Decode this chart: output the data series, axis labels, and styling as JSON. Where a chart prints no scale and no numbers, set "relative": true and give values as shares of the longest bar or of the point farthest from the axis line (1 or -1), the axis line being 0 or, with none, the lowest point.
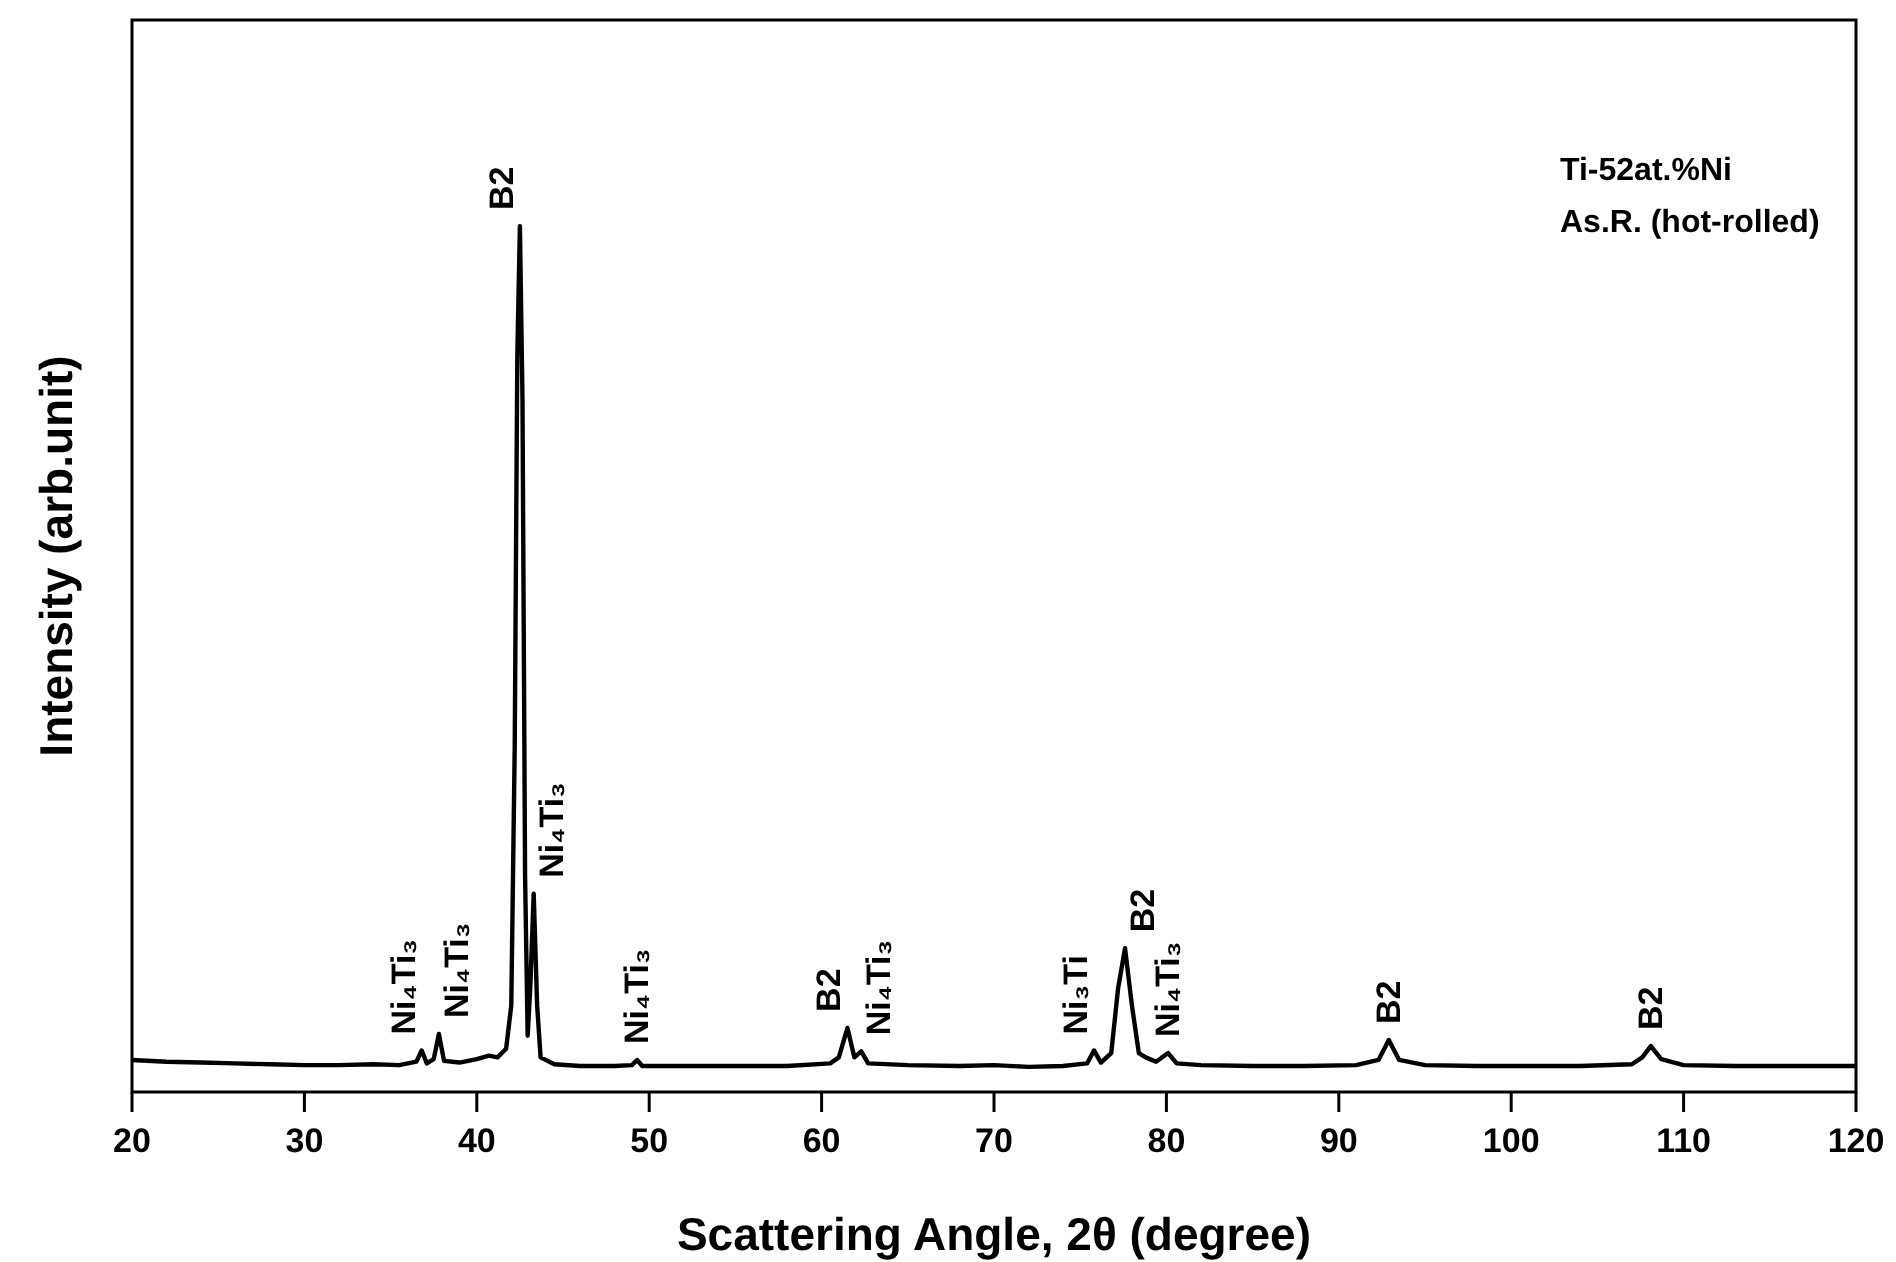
{
  "chart_data": {
    "type": "line",
    "relative": true,
    "xlabel": "Scattering Angle, 2θ (degree)",
    "ylabel": "Intensity (arb.unit)",
    "xlim": [
      20,
      120
    ],
    "xticks": [
      20,
      30,
      40,
      50,
      60,
      70,
      80,
      90,
      100,
      110,
      120
    ],
    "tick_labels": "x",
    "grid": false,
    "marker": "none",
    "line_style": "solid",
    "series": [
      {
        "color": "#000000",
        "x": [
          20,
          22,
          24,
          26,
          28,
          30,
          32,
          34,
          35.5,
          36.5,
          36.8,
          37.1,
          37.5,
          37.8,
          38.1,
          39,
          40,
          40.7,
          41.2,
          41.7,
          42.0,
          42.2,
          42.35,
          42.5,
          42.65,
          42.8,
          42.95,
          43.1,
          43.3,
          43.5,
          43.7,
          44.5,
          46,
          48,
          49.0,
          49.3,
          49.6,
          52,
          55,
          58,
          60.5,
          61.0,
          61.5,
          61.9,
          62.3,
          62.7,
          65,
          68,
          70,
          72,
          74,
          75.4,
          75.8,
          76.2,
          76.8,
          77.2,
          77.6,
          78.0,
          78.4,
          78.8,
          79.4,
          80.1,
          80.6,
          82,
          85,
          88,
          91,
          92.3,
          92.9,
          93.5,
          95,
          98,
          101,
          104,
          107,
          107.6,
          108.1,
          108.7,
          110,
          113,
          116,
          120
        ],
        "values": [
          0.037,
          0.035,
          0.034,
          0.033,
          0.032,
          0.031,
          0.031,
          0.032,
          0.031,
          0.035,
          0.048,
          0.033,
          0.038,
          0.067,
          0.036,
          0.034,
          0.038,
          0.042,
          0.04,
          0.05,
          0.1,
          0.4,
          0.85,
          1.0,
          0.8,
          0.25,
          0.065,
          0.12,
          0.229,
          0.1,
          0.04,
          0.032,
          0.03,
          0.03,
          0.031,
          0.037,
          0.03,
          0.03,
          0.03,
          0.03,
          0.033,
          0.04,
          0.074,
          0.04,
          0.047,
          0.033,
          0.031,
          0.03,
          0.031,
          0.029,
          0.03,
          0.033,
          0.048,
          0.034,
          0.045,
          0.12,
          0.166,
          0.1,
          0.045,
          0.04,
          0.035,
          0.045,
          0.033,
          0.031,
          0.03,
          0.03,
          0.031,
          0.037,
          0.06,
          0.037,
          0.031,
          0.03,
          0.03,
          0.03,
          0.032,
          0.04,
          0.053,
          0.038,
          0.031,
          0.03,
          0.03,
          0.03
        ]
      }
    ],
    "annotations": [
      "Ti-52at.%Ni",
      "As.R. (hot-rolled)",
      {
        "text": "Ni₄Ti₃",
        "x": 36.8,
        "y": 0.048
      },
      {
        "text": "Ni₄Ti₃",
        "x": 37.8,
        "y": 0.067
      },
      {
        "text": "B2",
        "x": 42.5,
        "y": 1.0
      },
      {
        "text": "Ni₄Ti₃",
        "x": 43.3,
        "y": 0.229
      },
      {
        "text": "Ni₄Ti₃",
        "x": 49.3,
        "y": 0.037
      },
      {
        "text": "B2",
        "x": 61.5,
        "y": 0.074
      },
      {
        "text": "Ni₄Ti₃",
        "x": 62.3,
        "y": 0.047
      },
      {
        "text": "Ni₃Ti",
        "x": 75.8,
        "y": 0.048
      },
      {
        "text": "B2",
        "x": 77.6,
        "y": 0.166
      },
      {
        "text": "Ni₄Ti₃",
        "x": 80.1,
        "y": 0.045
      },
      {
        "text": "B2",
        "x": 92.9,
        "y": 0.06
      },
      {
        "text": "B2",
        "x": 108.1,
        "y": 0.053
      }
    ]
  }
}
